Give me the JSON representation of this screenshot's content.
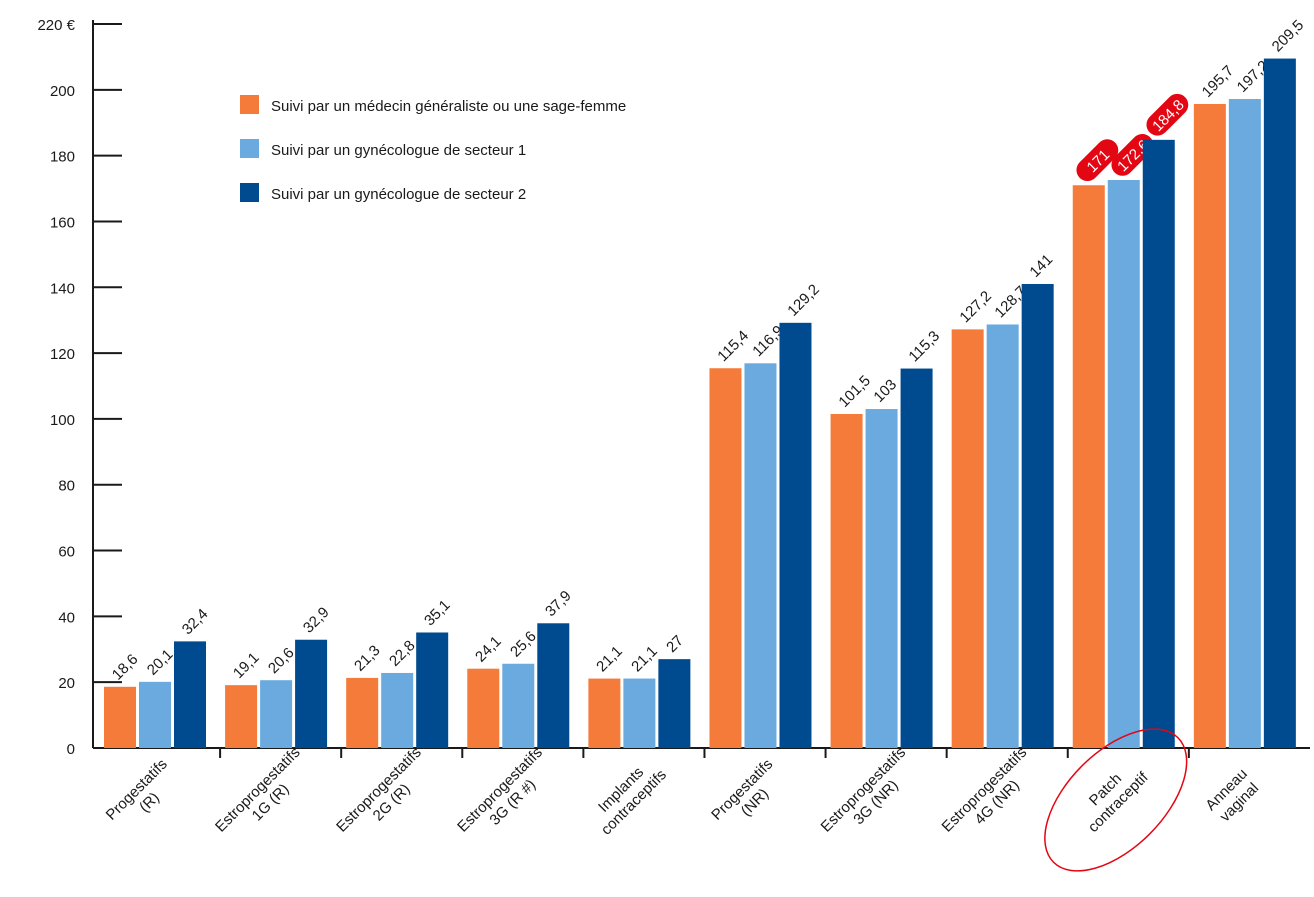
{
  "chart_data": {
    "type": "bar",
    "categories": [
      [
        "Progestatifs",
        "(R)"
      ],
      [
        "Estroprogestatifs",
        "1G (R)"
      ],
      [
        "Estroprogestatifs",
        "2G (R)"
      ],
      [
        "Estroprogestatifs",
        "3G (R #)"
      ],
      [
        "Implants",
        "contraceptifs"
      ],
      [
        "Progestatifs",
        "(NR)"
      ],
      [
        "Estroprogestatifs",
        "3G (NR)"
      ],
      [
        "Estroprogestatifs",
        "4G (NR)"
      ],
      [
        "Patch",
        "contraceptif"
      ],
      [
        "Anneau",
        "vaginal"
      ]
    ],
    "series": [
      {
        "name": "Suivi par un médecin généraliste ou une sage-femme",
        "color": "#f47b3a",
        "values": [
          18.6,
          19.1,
          21.3,
          24.1,
          21.1,
          115.4,
          101.5,
          127.2,
          171,
          195.7
        ],
        "value_labels": [
          "18,6",
          "19,1",
          "21,3",
          "24,1",
          "21,1",
          "115,4",
          "101,5",
          "127,2",
          "171",
          "195,7"
        ]
      },
      {
        "name": "Suivi par un gynécologue de secteur 1",
        "color": "#6aaadf",
        "values": [
          20.1,
          20.6,
          22.8,
          25.6,
          21.1,
          116.9,
          103,
          128.7,
          172.6,
          197.2
        ],
        "value_labels": [
          "20,1",
          "20,6",
          "22,8",
          "25,6",
          "21,1",
          "116,9",
          "103",
          "128,7",
          "172,6",
          "197,2"
        ]
      },
      {
        "name": "Suivi par un gynécologue de secteur 2",
        "color": "#004a8f",
        "values": [
          32.4,
          32.9,
          35.1,
          37.9,
          27,
          129.2,
          115.3,
          141,
          184.8,
          209.5
        ],
        "value_labels": [
          "32,4",
          "32,9",
          "35,1",
          "37,9",
          "27",
          "129,2",
          "115,3",
          "141",
          "184,8",
          "209,5"
        ]
      }
    ],
    "ylim": [
      0,
      220
    ],
    "yticks": [
      0,
      20,
      40,
      60,
      80,
      100,
      120,
      140,
      160,
      180,
      200,
      {
        "value": 220,
        "label": "220 €"
      }
    ],
    "highlight": {
      "category": 8,
      "color": "#e30613"
    }
  }
}
